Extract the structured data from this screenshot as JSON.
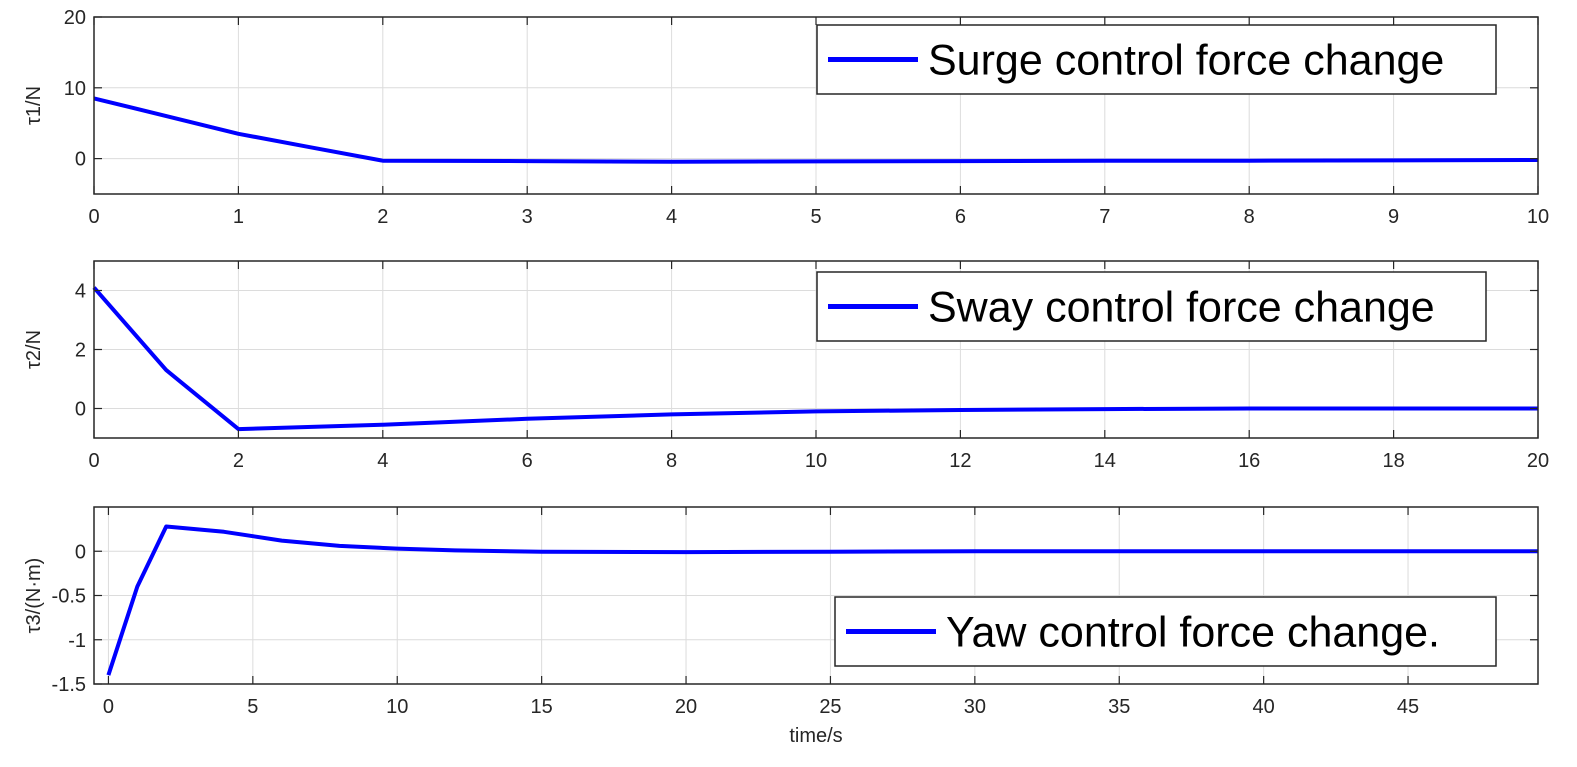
{
  "chart_data": [
    {
      "type": "line",
      "ylabel": "τ1/N",
      "xlabel": "",
      "xlim": [
        0,
        10
      ],
      "ylim": [
        -5,
        20
      ],
      "xticks": [
        0,
        1,
        2,
        3,
        4,
        5,
        6,
        7,
        8,
        9,
        10
      ],
      "yticks": [
        0,
        10,
        20
      ],
      "grid": true,
      "legend_position": "top-right",
      "series": [
        {
          "name": "Surge control force change",
          "color": "#0000ff",
          "x": [
            0,
            0.5,
            1,
            1.5,
            2,
            3,
            4,
            5,
            6,
            7,
            8,
            9,
            10
          ],
          "y": [
            8.5,
            6.0,
            3.5,
            1.6,
            -0.3,
            -0.35,
            -0.45,
            -0.4,
            -0.35,
            -0.3,
            -0.3,
            -0.25,
            -0.2
          ]
        }
      ]
    },
    {
      "type": "line",
      "ylabel": "τ2/N",
      "xlabel": "",
      "xlim": [
        0,
        20
      ],
      "ylim": [
        -1,
        5
      ],
      "xticks": [
        0,
        2,
        4,
        6,
        8,
        10,
        12,
        14,
        16,
        18,
        20
      ],
      "yticks": [
        0,
        2,
        4
      ],
      "grid": true,
      "legend_position": "top-right",
      "series": [
        {
          "name": "Sway control force change",
          "color": "#0000ff",
          "x": [
            0,
            1,
            2,
            4,
            6,
            8,
            10,
            12,
            14,
            16,
            18,
            20
          ],
          "y": [
            4.1,
            1.3,
            -0.7,
            -0.55,
            -0.35,
            -0.2,
            -0.1,
            -0.05,
            -0.02,
            0.0,
            0.0,
            0.0
          ]
        }
      ]
    },
    {
      "type": "line",
      "ylabel": "τ3/(N·m)",
      "xlabel": "time/s",
      "xlim": [
        -0.5,
        49.5
      ],
      "ylim": [
        -1.5,
        0.5
      ],
      "xticks": [
        0,
        5,
        10,
        15,
        20,
        25,
        30,
        35,
        40,
        45
      ],
      "yticks": [
        -1.5,
        -1,
        -0.5,
        0
      ],
      "yticklabels": [
        "-1.5",
        "-1",
        "-0.5",
        "0"
      ],
      "grid": true,
      "legend_position": "bottom-right",
      "series": [
        {
          "name": "Yaw control force change.",
          "color": "#0000ff",
          "x": [
            0,
            1,
            2,
            4,
            6,
            8,
            10,
            12,
            15,
            20,
            25,
            30,
            35,
            40,
            45,
            49.5
          ],
          "y": [
            -1.4,
            -0.4,
            0.28,
            0.22,
            0.12,
            0.06,
            0.03,
            0.01,
            -0.005,
            -0.01,
            -0.005,
            0.0,
            0.0,
            0.0,
            0.0,
            0.0
          ]
        }
      ]
    }
  ]
}
